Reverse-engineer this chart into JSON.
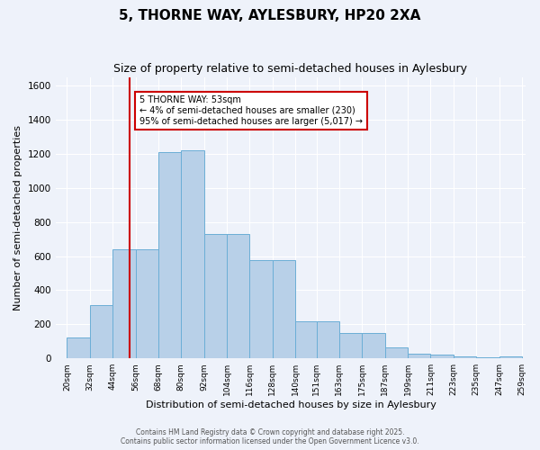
{
  "title1": "5, THORNE WAY, AYLESBURY, HP20 2XA",
  "title2": "Size of property relative to semi-detached houses in Aylesbury",
  "xlabel": "Distribution of semi-detached houses by size in Aylesbury",
  "ylabel": "Number of semi-detached properties",
  "bin_starts": [
    20,
    32,
    44,
    56,
    68,
    80,
    92,
    104,
    116,
    128,
    140,
    151,
    163,
    175,
    187,
    199,
    211,
    223,
    235,
    247
  ],
  "bin_counts": [
    120,
    310,
    640,
    640,
    1210,
    1220,
    730,
    730,
    575,
    575,
    215,
    215,
    150,
    150,
    65,
    30,
    20,
    10,
    5,
    10
  ],
  "bar_color": "#b8d0e8",
  "bar_edge_color": "#6baed6",
  "vline_x": 53,
  "vline_color": "#cc0000",
  "annotation_text": "5 THORNE WAY: 53sqm\n← 4% of semi-detached houses are smaller (230)\n95% of semi-detached houses are larger (5,017) →",
  "annotation_box_color": "#ffffff",
  "annotation_box_edge": "#cc0000",
  "tick_labels": [
    "20sqm",
    "32sqm",
    "44sqm",
    "56sqm",
    "68sqm",
    "80sqm",
    "92sqm",
    "104sqm",
    "116sqm",
    "128sqm",
    "140sqm",
    "151sqm",
    "163sqm",
    "175sqm",
    "187sqm",
    "199sqm",
    "211sqm",
    "223sqm",
    "235sqm",
    "247sqm",
    "259sqm"
  ],
  "yticks": [
    0,
    200,
    400,
    600,
    800,
    1000,
    1200,
    1400,
    1600
  ],
  "ylim": [
    0,
    1650
  ],
  "footnote1": "Contains HM Land Registry data © Crown copyright and database right 2025.",
  "footnote2": "Contains public sector information licensed under the Open Government Licence v3.0.",
  "bg_color": "#eef2fa",
  "grid_color": "#ffffff"
}
